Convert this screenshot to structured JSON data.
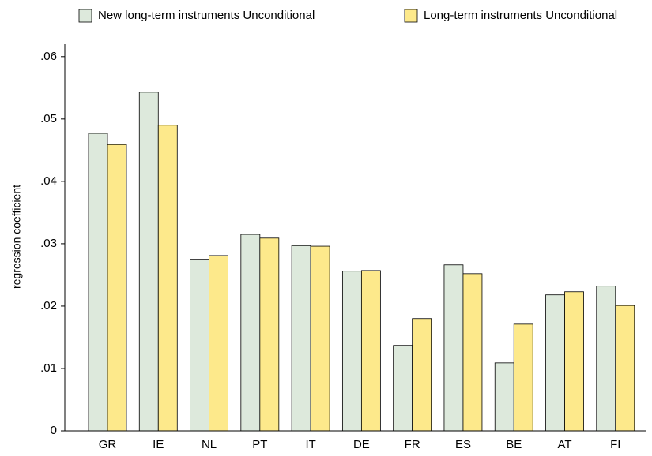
{
  "chart_data": {
    "type": "bar",
    "y_label": "regression coefficient",
    "categories": [
      "GR",
      "IE",
      "NL",
      "PT",
      "IT",
      "DE",
      "FR",
      "ES",
      "BE",
      "AT",
      "FI"
    ],
    "series": [
      {
        "name": "New long-term instruments Unconditional",
        "color": "#dde9dc",
        "values": [
          0.0477,
          0.0543,
          0.0275,
          0.0315,
          0.0297,
          0.0256,
          0.0137,
          0.0266,
          0.0109,
          0.0218,
          0.0232
        ]
      },
      {
        "name": "Long-term instruments Unconditional",
        "color": "#fde98b",
        "values": [
          0.0459,
          0.049,
          0.0281,
          0.0309,
          0.0296,
          0.0257,
          0.018,
          0.0252,
          0.0171,
          0.0223,
          0.0201
        ]
      }
    ],
    "ylim": [
      0,
      0.062
    ],
    "yticks": [
      0,
      {
        "value": 0.01,
        "label": ".01"
      },
      {
        "value": 0.02,
        "label": ".02"
      },
      {
        "value": 0.03,
        "label": ".03"
      },
      {
        "value": 0.04,
        "label": ".04"
      },
      {
        "value": 0.05,
        "label": ".05"
      },
      {
        "value": 0.06,
        "label": ".06"
      }
    ],
    "legend": "top"
  }
}
